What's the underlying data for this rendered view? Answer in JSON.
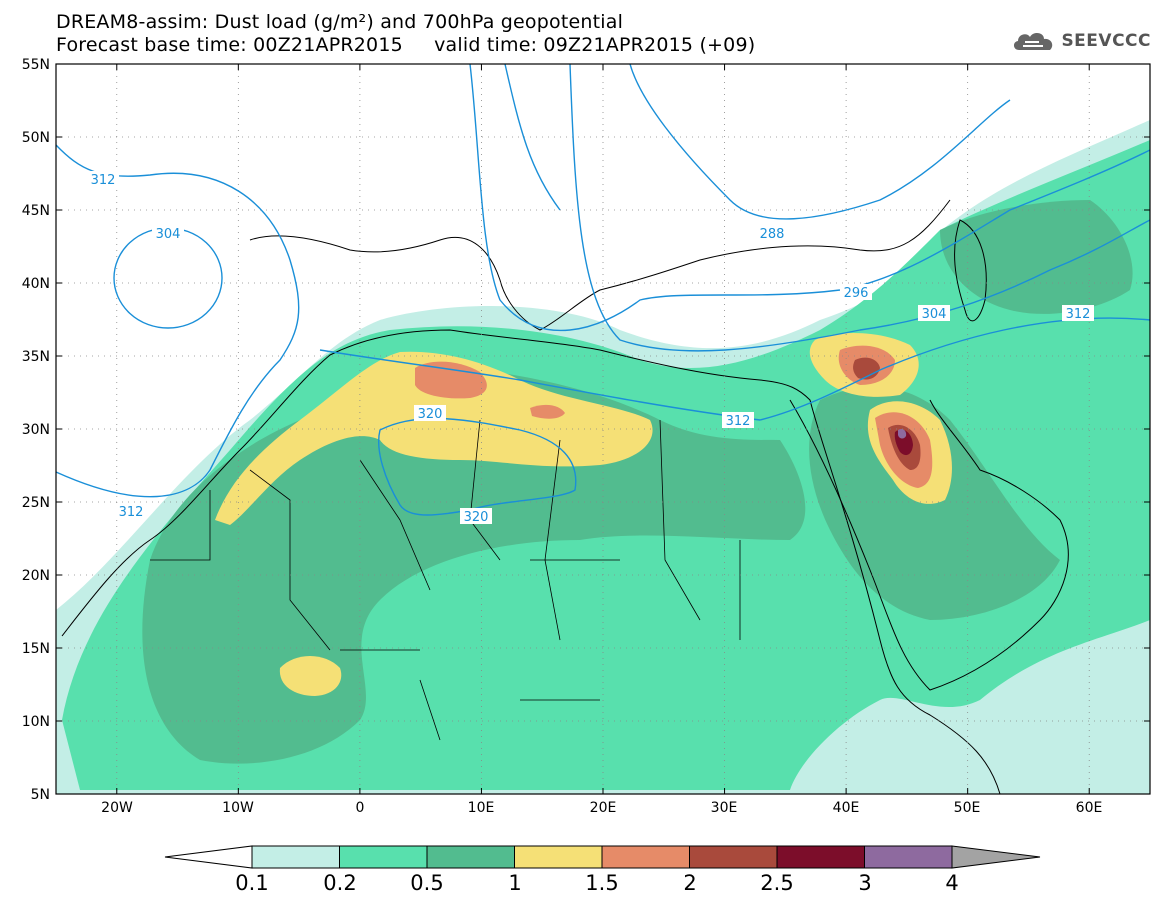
{
  "header": {
    "title_line1": "DREAM8-assim: Dust load (g/m²) and 700hPa geopotential",
    "title_line2": "Forecast base time: 00Z21APR2015     valid time: 09Z21APR2015 (+09)",
    "logo_text": "SEEVCCC",
    "logo_icon": "cloud-icon"
  },
  "map": {
    "projection": "lat-lon",
    "lon_range": [
      -25,
      65
    ],
    "lat_range": [
      5,
      55
    ],
    "lat_labels": [
      "55N",
      "50N",
      "45N",
      "40N",
      "35N",
      "30N",
      "25N",
      "20N",
      "15N",
      "10N",
      "5N"
    ],
    "lon_labels": [
      "20W",
      "10W",
      "0",
      "10E",
      "20E",
      "30E",
      "40E",
      "50E",
      "60E"
    ],
    "grid": "dotted",
    "contour_color": "#1a8fd8",
    "contour_labels": [
      {
        "text": "312"
      },
      {
        "text": "304"
      },
      {
        "text": "312"
      },
      {
        "text": "320"
      },
      {
        "text": "320"
      },
      {
        "text": "288"
      },
      {
        "text": "296"
      },
      {
        "text": "304"
      },
      {
        "text": "312"
      },
      {
        "text": "312"
      }
    ]
  },
  "colorbar": {
    "labels": [
      "0.1",
      "0.2",
      "0.5",
      "1",
      "1.5",
      "2",
      "2.5",
      "3",
      "4"
    ],
    "colors": [
      "#c3eee6",
      "#58e0ad",
      "#52bc8f",
      "#f5e076",
      "#e68b68",
      "#a94a3c",
      "#7c0d2a",
      "#8e6a9f",
      "#a3a3a3"
    ]
  }
}
